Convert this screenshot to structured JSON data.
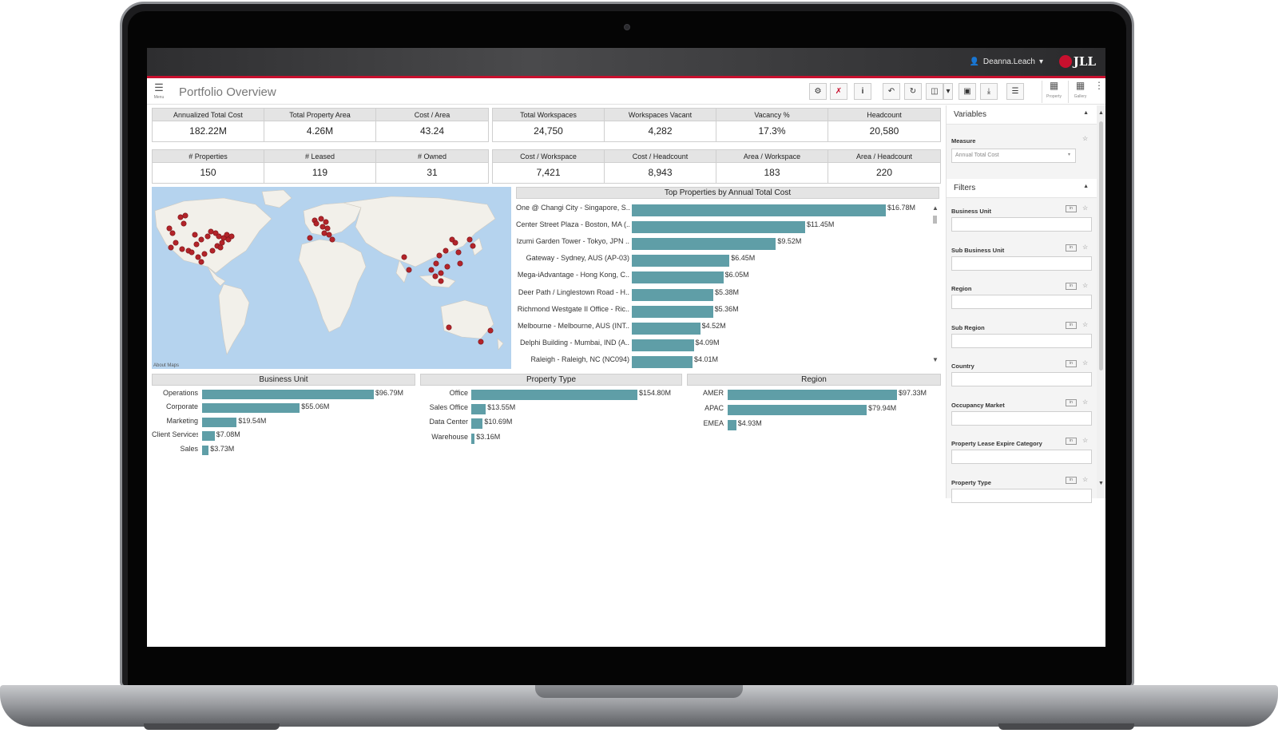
{
  "header": {
    "username": "Deanna.Leach",
    "logo_text": "JLL"
  },
  "titlebar": {
    "menu_label": "Menu",
    "title": "Portfolio Overview",
    "property_label": "Property",
    "gallery_label": "Gallery"
  },
  "kpi_row1_left": [
    {
      "label": "Annualized Total Cost",
      "value": "182.22M"
    },
    {
      "label": "Total Property Area",
      "value": "4.26M"
    },
    {
      "label": "Cost / Area",
      "value": "43.24"
    }
  ],
  "kpi_row1_right": [
    {
      "label": "Total Workspaces",
      "value": "24,750"
    },
    {
      "label": "Workspaces Vacant",
      "value": "4,282"
    },
    {
      "label": "Vacancy %",
      "value": "17.3%"
    },
    {
      "label": "Headcount",
      "value": "20,580"
    }
  ],
  "kpi_row2_left": [
    {
      "label": "# Properties",
      "value": "150"
    },
    {
      "label": "# Leased",
      "value": "119"
    },
    {
      "label": "# Owned",
      "value": "31"
    }
  ],
  "kpi_row2_right": [
    {
      "label": "Cost / Workspace",
      "value": "7,421"
    },
    {
      "label": "Cost / Headcount",
      "value": "8,943"
    },
    {
      "label": "Area / Workspace",
      "value": "183"
    },
    {
      "label": "Area / Headcount",
      "value": "220"
    }
  ],
  "map": {
    "credit": "About Maps"
  },
  "chart_data": [
    {
      "type": "bar",
      "title": "Top Properties by Annual Total Cost",
      "categories": [
        "One @ Changi City - Singapore, S..",
        "Center Street Plaza - Boston, MA (..",
        "Izumi Garden Tower - Tokyo, JPN ..",
        "Gateway - Sydney, AUS (AP-03)",
        "Mega-iAdvantage - Hong Kong, C..",
        "Deer Path / Linglestown Road - H..",
        "Richmond Westgate II Office - Ric..",
        "Melbourne - Melbourne, AUS (INT..",
        "Delphi Building - Mumbai, IND (A..",
        "Raleigh - Raleigh, NC (NC094)"
      ],
      "values": [
        16.78,
        11.45,
        9.52,
        6.45,
        6.05,
        5.38,
        5.36,
        4.52,
        4.09,
        4.01
      ],
      "labels": [
        "$16.78M",
        "$11.45M",
        "$9.52M",
        "$6.45M",
        "$6.05M",
        "$5.38M",
        "$5.36M",
        "$4.52M",
        "$4.09M",
        "$4.01M"
      ],
      "color": "#5f9ea7"
    },
    {
      "type": "bar",
      "title": "Business Unit",
      "categories": [
        "Operations",
        "Corporate",
        "Marketing",
        "Client Services",
        "Sales"
      ],
      "values": [
        96.79,
        55.06,
        19.54,
        7.08,
        3.73
      ],
      "labels": [
        "$96.79M",
        "$55.06M",
        "$19.54M",
        "$7.08M",
        "$3.73M"
      ],
      "color": "#5f9ea7"
    },
    {
      "type": "bar",
      "title": "Property Type",
      "categories": [
        "Office",
        "Sales Office",
        "Data Center",
        "Warehouse"
      ],
      "values": [
        154.8,
        13.55,
        10.69,
        3.16
      ],
      "labels": [
        "$154.80M",
        "$13.55M",
        "$10.69M",
        "$3.16M"
      ],
      "color": "#5f9ea7"
    },
    {
      "type": "bar",
      "title": "Region",
      "categories": [
        "AMER",
        "APAC",
        "EMEA"
      ],
      "values": [
        97.33,
        79.94,
        4.93
      ],
      "labels": [
        "$97.33M",
        "$79.94M",
        "$4.93M"
      ],
      "color": "#5f9ea7"
    }
  ],
  "sidepanel": {
    "variables_title": "Variables",
    "measure_label": "Measure",
    "measure_value": "Annual Total Cost",
    "filters_title": "Filters",
    "filter_tag": "in",
    "filters": [
      "Business Unit",
      "Sub Business Unit",
      "Region",
      "Sub Region",
      "Country",
      "Occupancy Market",
      "Property Lease Expire Category",
      "Property Type"
    ]
  },
  "colors": {
    "accent": "#c8102e",
    "bar": "#5f9ea7"
  }
}
